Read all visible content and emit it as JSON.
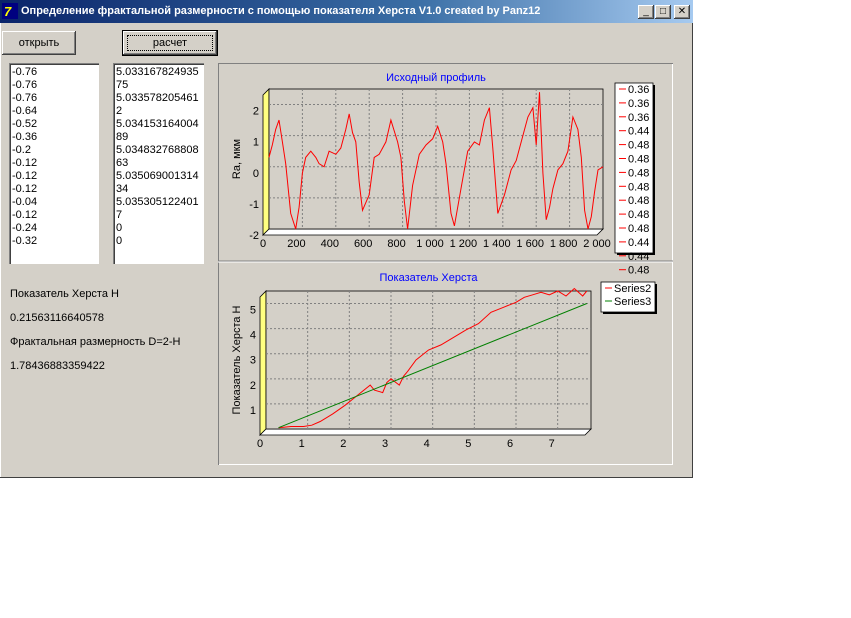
{
  "window": {
    "title": "Определение фрактальной размерности с помощью показателя Херста V1.0 created by Panz12",
    "minimize_glyph": "_",
    "maximize_glyph": "□",
    "close_glyph": "✕"
  },
  "toolbar": {
    "open_label": "открыть",
    "calc_label": "расчет"
  },
  "list1": [
    "-0.76",
    "-0.76",
    "-0.76",
    "-0.64",
    "-0.52",
    "-0.36",
    "-0.2",
    "-0.12",
    "-0.12",
    "-0.12",
    "-0.04",
    "-0.12",
    "-0.24",
    "-0.32"
  ],
  "list2": [
    "5.033167824935",
    "75",
    "5.033578205461",
    "2",
    "5.034153164004",
    "89",
    "5.034832768808",
    "63",
    "5.035069001314",
    "34",
    "5.035305122401",
    "7",
    "0",
    "0"
  ],
  "results": {
    "hurst_label": "Показатель Херста H",
    "hurst_value": "0.21563116640578",
    "dimension_label": "Фрактальная размерность D=2-H",
    "dimension_value": "1.78436883359422"
  },
  "colors": {
    "wall": "#ffff80",
    "series_red": "#ff0000",
    "series_green": "#008000",
    "title_blue": "#0000ff"
  },
  "chart_data": [
    {
      "type": "line",
      "title": "Исходный профиль",
      "xlabel": "",
      "ylabel": "Ra, мкм",
      "xlim": [
        0,
        2000
      ],
      "ylim": [
        -2,
        2.5
      ],
      "x_ticks": [
        0,
        200,
        400,
        600,
        800,
        1000,
        1200,
        1400,
        1600,
        1800,
        2000
      ],
      "x_tick_labels": [
        "0",
        "200",
        "400",
        "600",
        "800",
        "1 000",
        "1 200",
        "1 400",
        "1 600",
        "1 800",
        "2 000"
      ],
      "y_ticks": [
        -2,
        -1,
        0,
        1,
        2
      ],
      "y_tick_labels": [
        "-2",
        "-1",
        "0",
        "1",
        "2"
      ],
      "grid": true,
      "legend_position": "right",
      "legend_entries": [
        "0.36",
        "0.36",
        "0.36",
        "0.44",
        "0.48",
        "0.48",
        "0.48",
        "0.48",
        "0.48",
        "0.48",
        "0.48",
        "0.44",
        "0.44",
        "0.48"
      ],
      "series": [
        {
          "color": "#ff0000",
          "x": [
            0,
            20,
            40,
            60,
            80,
            100,
            130,
            160,
            180,
            200,
            220,
            250,
            280,
            300,
            330,
            360,
            400,
            430,
            460,
            480,
            500,
            520,
            540,
            560,
            600,
            630,
            660,
            700,
            730,
            770,
            790,
            810,
            830,
            860,
            900,
            940,
            980,
            1010,
            1040,
            1060,
            1090,
            1110,
            1150,
            1190,
            1230,
            1260,
            1290,
            1320,
            1340,
            1370,
            1410,
            1450,
            1480,
            1510,
            1550,
            1580,
            1600,
            1620,
            1640,
            1660,
            1680,
            1700,
            1730,
            1760,
            1790,
            1820,
            1850,
            1870,
            1890,
            1910,
            1930,
            1950,
            1970,
            2000
          ],
          "y": [
            0.3,
            0.7,
            1.2,
            1.5,
            0.8,
            0.1,
            -1.5,
            -2.0,
            -1.3,
            -0.2,
            0.3,
            0.5,
            0.3,
            0.1,
            0.0,
            0.5,
            0.4,
            0.6,
            1.2,
            1.7,
            1.1,
            0.8,
            -0.5,
            -1.4,
            -0.9,
            0.3,
            0.4,
            0.8,
            1.5,
            0.8,
            0.3,
            -1.1,
            -2.0,
            -0.6,
            0.4,
            0.7,
            0.9,
            1.3,
            0.8,
            0.1,
            -1.5,
            -1.9,
            -0.7,
            0.5,
            0.8,
            0.7,
            1.5,
            1.9,
            0.6,
            -1.5,
            -0.9,
            -0.1,
            0.2,
            0.8,
            1.6,
            1.9,
            0.7,
            2.4,
            -0.2,
            -1.7,
            -1.3,
            -0.7,
            -0.1,
            0.1,
            0.5,
            1.6,
            1.2,
            0.3,
            -1.4,
            -2.0,
            -1.6,
            -0.8,
            -0.1,
            0.0
          ]
        }
      ]
    },
    {
      "type": "line",
      "title": "Показатель Херста",
      "xlabel": "",
      "ylabel": "Показатель Херста H",
      "xlim": [
        0,
        7.8
      ],
      "ylim": [
        0,
        5.5
      ],
      "x_ticks": [
        0,
        1,
        2,
        3,
        4,
        5,
        6,
        7
      ],
      "x_tick_labels": [
        "0",
        "1",
        "2",
        "3",
        "4",
        "5",
        "6",
        "7"
      ],
      "y_ticks": [
        1,
        2,
        3,
        4,
        5
      ],
      "y_tick_labels": [
        "1",
        "2",
        "3",
        "4",
        "5"
      ],
      "grid": true,
      "legend_position": "top-right",
      "series": [
        {
          "name": "Series2",
          "color": "#ff0000",
          "x": [
            0.3,
            0.6,
            0.9,
            1.1,
            1.3,
            1.6,
            1.9,
            2.2,
            2.5,
            2.6,
            2.8,
            2.9,
            3.0,
            3.2,
            3.3,
            3.4,
            3.6,
            3.9,
            4.2,
            4.5,
            4.8,
            5.1,
            5.4,
            5.7,
            6.0,
            6.2,
            6.4,
            6.6,
            6.8,
            7.0,
            7.2,
            7.4,
            7.6,
            7.7
          ],
          "y": [
            0.05,
            0.1,
            0.1,
            0.15,
            0.3,
            0.6,
            0.95,
            1.35,
            1.75,
            1.55,
            1.45,
            1.85,
            2.0,
            1.75,
            2.1,
            2.3,
            2.75,
            3.15,
            3.35,
            3.65,
            3.95,
            4.2,
            4.65,
            4.85,
            5.05,
            5.25,
            5.35,
            5.45,
            5.35,
            5.5,
            5.3,
            5.6,
            5.3,
            5.5
          ]
        },
        {
          "name": "Series3",
          "color": "#008000",
          "x": [
            0.3,
            7.7
          ],
          "y": [
            0.05,
            5.0
          ]
        }
      ]
    }
  ]
}
